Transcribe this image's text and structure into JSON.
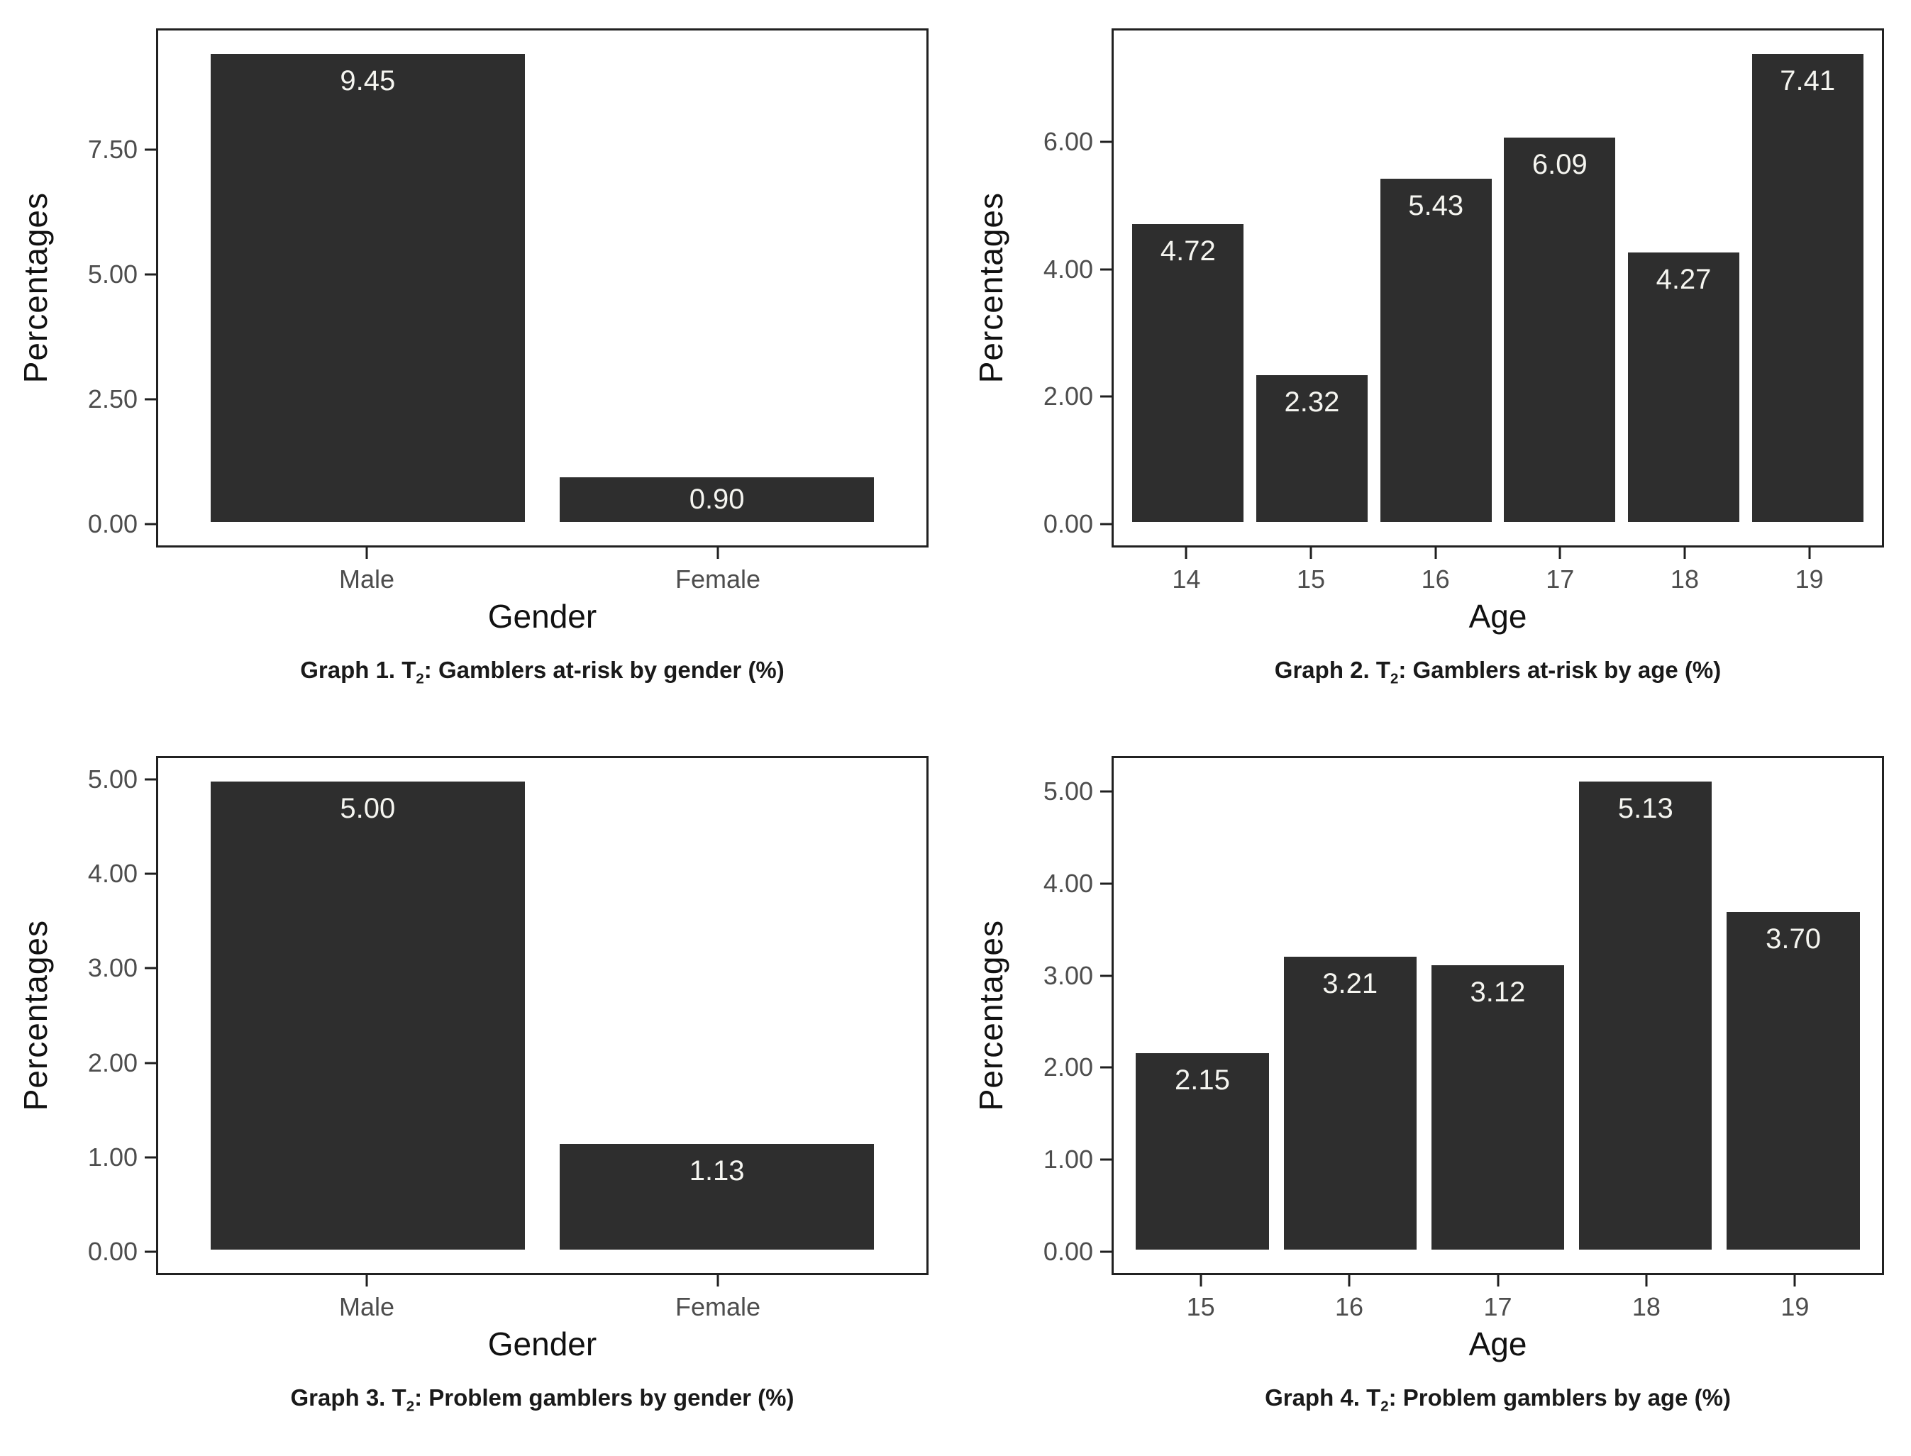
{
  "figure": {
    "background": "#ffffff",
    "text_colors": {
      "axis_title": "#111111",
      "tick_label": "#4d4d4d",
      "caption": "#1a1a1a"
    }
  },
  "chart_data": [
    {
      "type": "bar",
      "caption": {
        "prefix": "Graph 1. T",
        "sub": "2",
        "suffix": ": Gamblers at-risk by gender (%)"
      },
      "xlabel": "Gender",
      "ylabel": "Percentages",
      "categories": [
        "Male",
        "Female"
      ],
      "values": [
        9.45,
        0.9
      ],
      "value_labels": [
        "9.45",
        "0.90"
      ],
      "yticks": [
        0,
        2.5,
        5,
        7.5
      ],
      "ytick_labels": [
        "0.00",
        "2.50",
        "5.00",
        "7.50"
      ],
      "ylim": [
        -0.4725,
        9.9225
      ],
      "bar_width_frac": 0.9,
      "grid": "off",
      "legend": "none",
      "colors": {
        "bar": "#2e2e2e",
        "value_label": "#f5f5f0"
      }
    },
    {
      "type": "bar",
      "caption": {
        "prefix": "Graph 2. T",
        "sub": "2",
        "suffix": ": Gamblers at-risk by age (%)"
      },
      "xlabel": "Age",
      "ylabel": "Percentages",
      "categories": [
        "14",
        "15",
        "16",
        "17",
        "18",
        "19"
      ],
      "values": [
        4.72,
        2.32,
        5.43,
        6.09,
        4.27,
        7.41
      ],
      "value_labels": [
        "4.72",
        "2.32",
        "5.43",
        "6.09",
        "4.27",
        "7.41"
      ],
      "yticks": [
        0,
        2,
        4,
        6
      ],
      "ytick_labels": [
        "0.00",
        "2.00",
        "4.00",
        "6.00"
      ],
      "ylim": [
        -0.3705,
        7.7805
      ],
      "bar_width_frac": 0.9,
      "grid": "off",
      "legend": "none",
      "colors": {
        "bar": "#2e2e2e",
        "value_label": "#f5f5f0"
      }
    },
    {
      "type": "bar",
      "caption": {
        "prefix": "Graph 3. T",
        "sub": "2",
        "suffix": ": Problem gamblers by gender (%)"
      },
      "xlabel": "Gender",
      "ylabel": "Percentages",
      "categories": [
        "Male",
        "Female"
      ],
      "values": [
        5.0,
        1.13
      ],
      "value_labels": [
        "5.00",
        "1.13"
      ],
      "yticks": [
        0,
        1,
        2,
        3,
        4,
        5
      ],
      "ytick_labels": [
        "0.00",
        "1.00",
        "2.00",
        "3.00",
        "4.00",
        "5.00"
      ],
      "ylim": [
        -0.25,
        5.25
      ],
      "bar_width_frac": 0.9,
      "grid": "off",
      "legend": "none",
      "colors": {
        "bar": "#2e2e2e",
        "value_label": "#f5f5f0"
      }
    },
    {
      "type": "bar",
      "caption": {
        "prefix": "Graph 4. T",
        "sub": "2",
        "suffix": ": Problem gamblers by age (%)"
      },
      "xlabel": "Age",
      "ylabel": "Percentages",
      "categories": [
        "15",
        "16",
        "17",
        "18",
        "19"
      ],
      "values": [
        2.15,
        3.21,
        3.12,
        5.13,
        3.7
      ],
      "value_labels": [
        "2.15",
        "3.21",
        "3.12",
        "5.13",
        "3.70"
      ],
      "yticks": [
        0,
        1,
        2,
        3,
        4,
        5
      ],
      "ytick_labels": [
        "0.00",
        "1.00",
        "2.00",
        "3.00",
        "4.00",
        "5.00"
      ],
      "ylim": [
        -0.2565,
        5.3865
      ],
      "bar_width_frac": 0.9,
      "grid": "off",
      "legend": "none",
      "colors": {
        "bar": "#2e2e2e",
        "value_label": "#f5f5f0"
      }
    }
  ]
}
